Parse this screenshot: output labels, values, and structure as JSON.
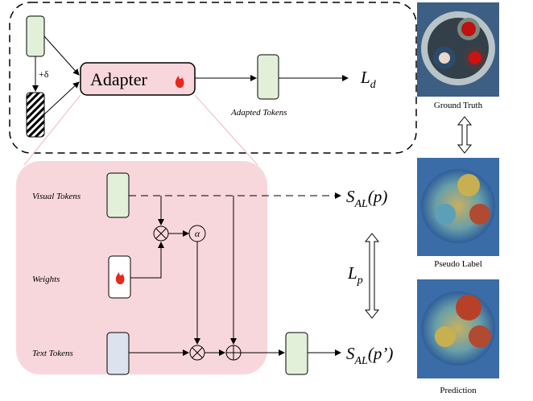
{
  "adapter": {
    "label": "Adapter",
    "perturbation": "+δ",
    "output": "Adapted Tokens",
    "loss": {
      "main": "L",
      "sub": "d"
    }
  },
  "inner": {
    "visual": "Visual Tokens",
    "weights": "Weights",
    "text": "Text Tokens",
    "alpha": "α"
  },
  "scores": [
    {
      "main": "S",
      "sub": "AL",
      "arg": "(p)"
    },
    {
      "main": "S",
      "sub": "AL",
      "arg": "(p’)"
    }
  ],
  "pseudo_loss": {
    "main": "L",
    "sub": "p"
  },
  "images": [
    {
      "caption": "Ground Truth"
    },
    {
      "caption": "Pseudo Label"
    },
    {
      "caption": "Prediction"
    }
  ]
}
